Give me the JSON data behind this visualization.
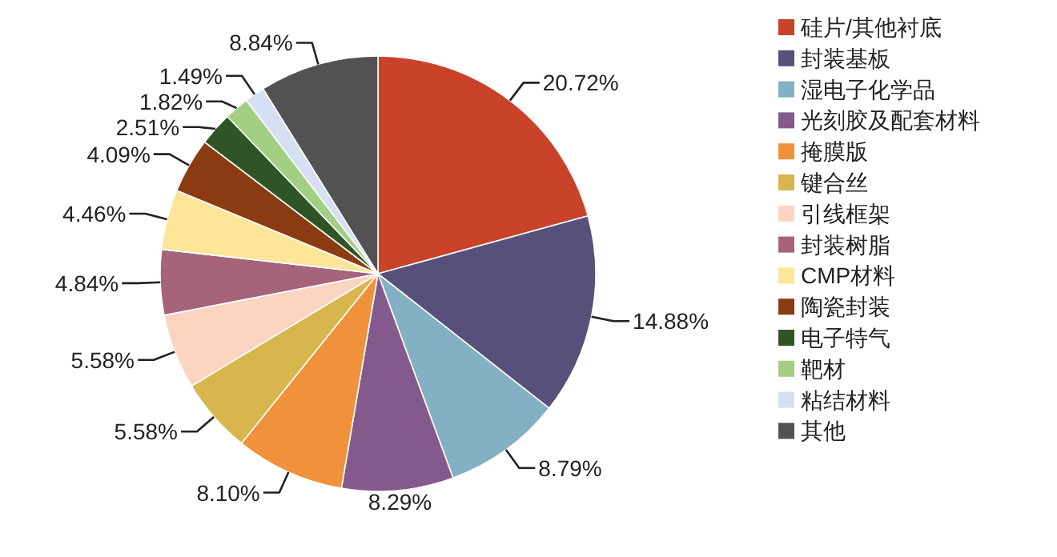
{
  "chart_data": {
    "type": "pie",
    "categories": [
      "硅片/其他衬底",
      "封装基板",
      "湿电子化学品",
      "光刻胶及配套材料",
      "掩膜版",
      "键合丝",
      "引线框架",
      "封装树脂",
      "CMP材料",
      "陶瓷封装",
      "电子特气",
      "靶材",
      "粘结材料",
      "其他"
    ],
    "values": [
      20.72,
      14.88,
      8.79,
      8.29,
      8.1,
      5.58,
      5.58,
      4.84,
      4.46,
      4.09,
      2.51,
      1.82,
      1.49,
      8.84
    ],
    "value_labels": [
      "20.72%",
      "14.88%",
      "8.79%",
      "8.29%",
      "8.10%",
      "5.58%",
      "5.58%",
      "4.84%",
      "4.46%",
      "4.09%",
      "2.51%",
      "1.82%",
      "1.49%",
      "8.84%"
    ],
    "colors": [
      "#c8432a",
      "#57507a",
      "#84b0c4",
      "#845a8c",
      "#f0913c",
      "#d8b64e",
      "#fdd3c2",
      "#a5647a",
      "#fde59a",
      "#8a3b12",
      "#2f5527",
      "#a2cf83",
      "#d6e0f2",
      "#525252"
    ],
    "legend": "right"
  }
}
